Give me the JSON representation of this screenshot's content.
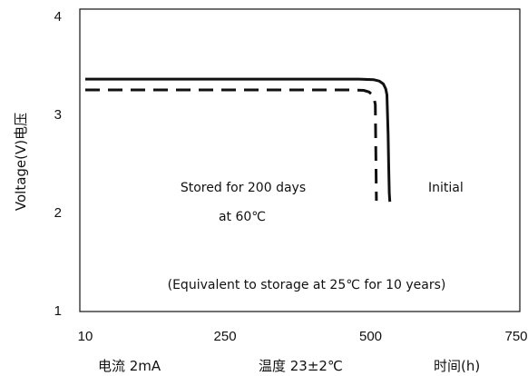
{
  "chart_data": {
    "type": "line",
    "xlabel": "时间(h)",
    "ylabel": "Voltage(V)电压",
    "xlim": [
      10,
      750
    ],
    "ylim": [
      1,
      4
    ],
    "x_ticks": [
      "10",
      "250",
      "500",
      "750"
    ],
    "y_ticks": [
      "1",
      "2",
      "3",
      "4"
    ],
    "grid": false,
    "series": [
      {
        "name": "Initial",
        "style": "solid",
        "color": "#111111",
        "x": [
          10,
          400,
          480,
          505,
          515,
          522,
          526,
          528,
          530,
          531,
          532,
          533
        ],
        "y": [
          3.36,
          3.36,
          3.36,
          3.355,
          3.34,
          3.31,
          3.26,
          3.2,
          2.8,
          2.5,
          2.2,
          2.11
        ]
      },
      {
        "name": "Stored for 200 days at 60℃",
        "style": "dashed",
        "color": "#111111",
        "x": [
          10,
          400,
          470,
          488,
          497,
          503,
          506,
          508,
          509,
          510
        ],
        "y": [
          3.25,
          3.25,
          3.25,
          3.245,
          3.23,
          3.2,
          3.16,
          3.1,
          2.6,
          2.12
        ]
      }
    ],
    "annotations": {
      "stored_line1": "Stored for 200 days",
      "stored_line2": "at 60℃",
      "initial": "Initial",
      "equivalent": "(Equivalent to storage at 25℃ for 10 years)"
    },
    "conditions": {
      "current": "电流  2mA",
      "temperature": "温度  23±2℃"
    }
  }
}
